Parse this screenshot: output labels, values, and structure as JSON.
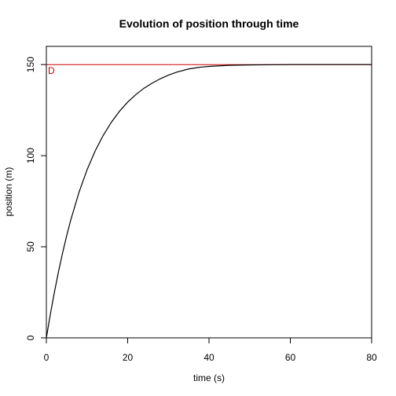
{
  "chart_data": {
    "type": "line",
    "title": "Evolution of position through time",
    "xlabel": "time (s)",
    "ylabel": "position (m)",
    "xlim": [
      0,
      80
    ],
    "ylim": [
      0,
      160
    ],
    "x_ticks": [
      0,
      20,
      40,
      60,
      80
    ],
    "y_ticks": [
      0,
      50,
      100,
      150
    ],
    "grid": false,
    "series": [
      {
        "color": "#000000",
        "x": [
          0,
          1,
          2,
          3,
          4,
          5,
          6,
          8,
          10,
          12,
          14,
          16,
          18,
          20,
          22,
          24,
          26,
          28,
          30,
          32,
          35,
          38,
          40,
          45,
          50,
          55,
          60,
          65,
          70,
          75,
          80
        ],
        "y": [
          0,
          13.2,
          25.3,
          36.5,
          46.7,
          56.1,
          64.7,
          79.7,
          92.2,
          102.6,
          111.2,
          118.4,
          124.4,
          129.4,
          133.5,
          137.0,
          139.8,
          142.2,
          144.2,
          145.8,
          147.6,
          148.6,
          149.0,
          149.6,
          149.8,
          149.9,
          150.0,
          150.0,
          150.0,
          150.0,
          150.0
        ]
      }
    ],
    "reference_line": {
      "y": 150,
      "label": "D",
      "color": "#cc0000"
    }
  }
}
